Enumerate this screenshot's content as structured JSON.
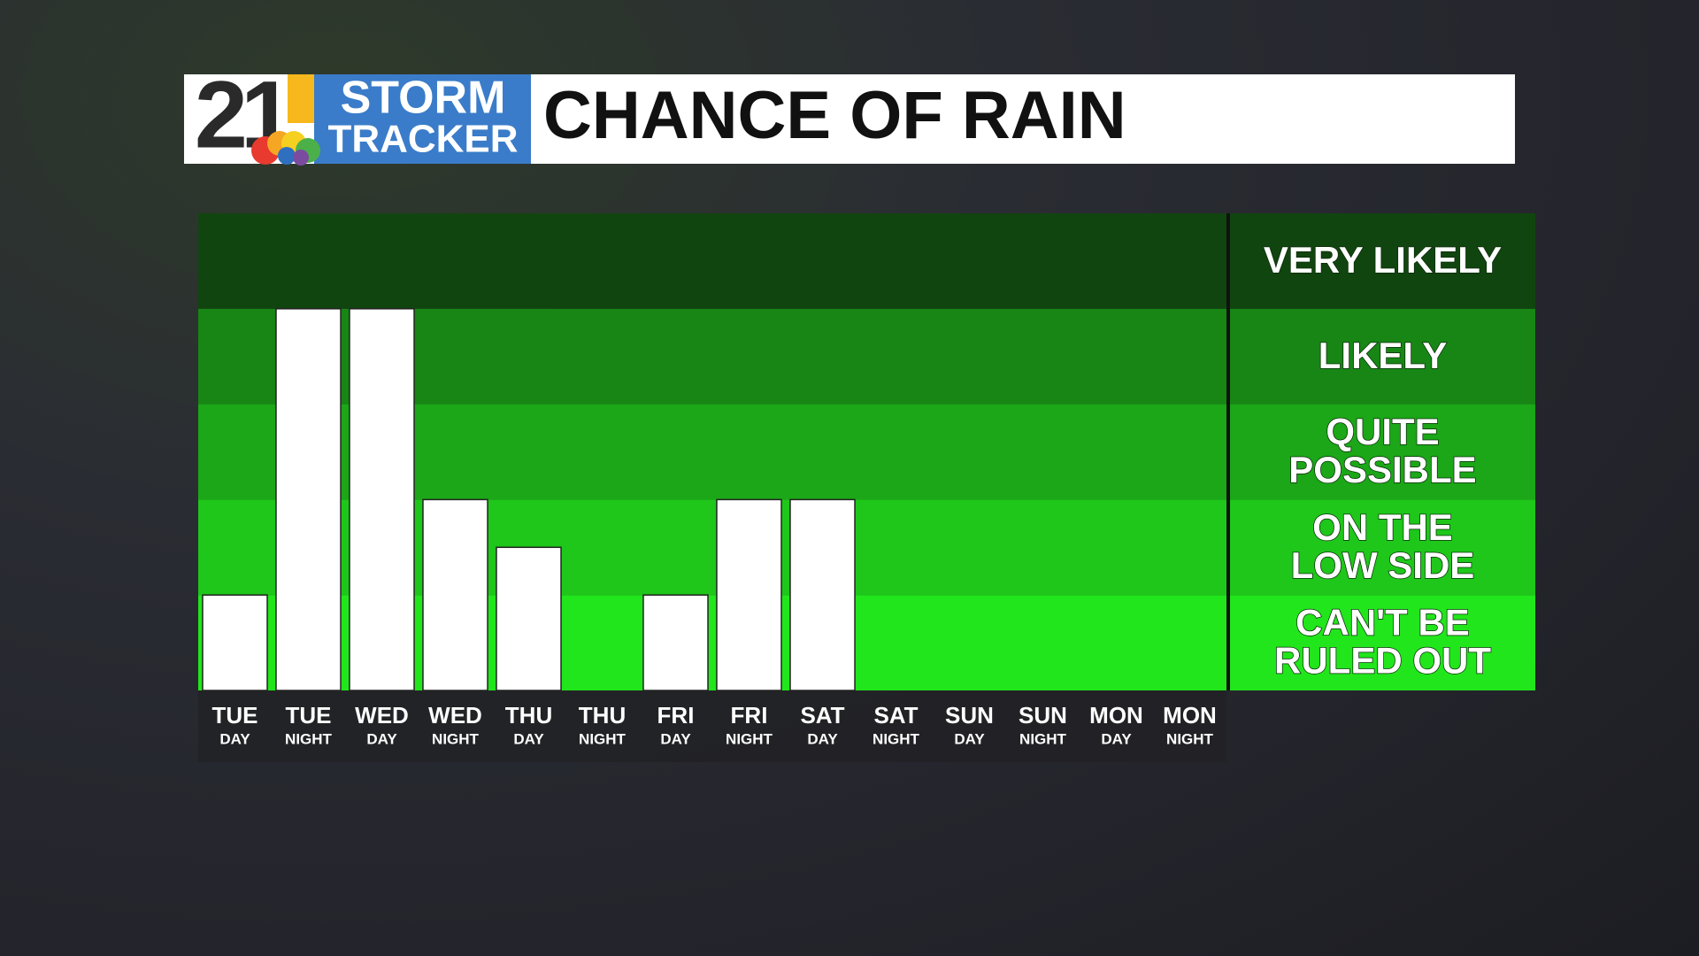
{
  "logo": {
    "number": "21",
    "line1": "STORM",
    "line2": "TRACKER"
  },
  "chart_data": {
    "type": "bar",
    "title": "CHANCE OF RAIN",
    "categories": [
      [
        "TUE",
        "DAY"
      ],
      [
        "TUE",
        "NIGHT"
      ],
      [
        "WED",
        "DAY"
      ],
      [
        "WED",
        "NIGHT"
      ],
      [
        "THU",
        "DAY"
      ],
      [
        "THU",
        "NIGHT"
      ],
      [
        "FRI",
        "DAY"
      ],
      [
        "FRI",
        "NIGHT"
      ],
      [
        "SAT",
        "DAY"
      ],
      [
        "SAT",
        "NIGHT"
      ],
      [
        "SUN",
        "DAY"
      ],
      [
        "SUN",
        "NIGHT"
      ],
      [
        "MON",
        "DAY"
      ],
      [
        "MON",
        "NIGHT"
      ]
    ],
    "values": [
      1,
      4,
      4,
      2,
      1.5,
      0,
      1,
      2,
      2,
      0,
      0,
      0,
      0,
      0
    ],
    "color": "#ffffff",
    "ylim": [
      0,
      5
    ],
    "yticks": [
      0,
      1,
      2,
      3,
      4,
      5
    ],
    "bands": [
      {
        "label": [
          "CAN'T BE",
          "RULED OUT"
        ],
        "color": "#21e61b"
      },
      {
        "label": [
          "ON THE",
          "LOW SIDE"
        ],
        "color": "#1ec71a"
      },
      {
        "label": [
          "QUITE",
          "POSSIBLE"
        ],
        "color": "#1ba717"
      },
      {
        "label": [
          "LIKELY"
        ],
        "color": "#178615"
      },
      {
        "label": [
          "VERY LIKELY"
        ],
        "color": "#11450f"
      }
    ]
  }
}
